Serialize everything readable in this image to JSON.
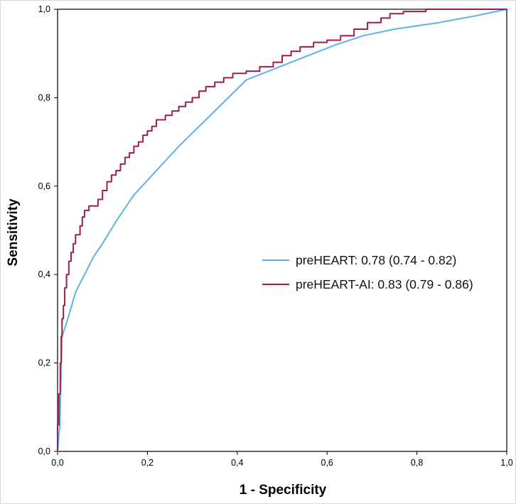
{
  "figure": {
    "background": "#ffffff",
    "frame_color": "#000000"
  },
  "chart_data": {
    "type": "line",
    "subtype": "roc-curve",
    "title": "",
    "xlabel": "1 - Specificity",
    "ylabel": "Sensitivity",
    "xlim": [
      0,
      1
    ],
    "ylim": [
      0,
      1
    ],
    "grid": false,
    "legend_position": "center-right",
    "x_ticks": [
      "0,0",
      "0,2",
      "0,4",
      "0,6",
      "0,8",
      "1,0"
    ],
    "y_ticks": [
      "0,0",
      "0,2",
      "0,4",
      "0,6",
      "0,8",
      "1,0"
    ],
    "series": [
      {
        "name": "preHEART: 0.78 (0.74 - 0.82)",
        "auc": 0.78,
        "ci_low": 0.74,
        "ci_high": 0.82,
        "color": "#5ab1f0",
        "line_style": "linear",
        "points": [
          [
            0,
            0
          ],
          [
            0.005,
            0.06
          ],
          [
            0.01,
            0.26
          ],
          [
            0.02,
            0.29
          ],
          [
            0.04,
            0.36
          ],
          [
            0.08,
            0.44
          ],
          [
            0.1,
            0.47
          ],
          [
            0.13,
            0.52
          ],
          [
            0.17,
            0.58
          ],
          [
            0.22,
            0.635
          ],
          [
            0.27,
            0.69
          ],
          [
            0.3,
            0.72
          ],
          [
            0.35,
            0.77
          ],
          [
            0.42,
            0.84
          ],
          [
            0.47,
            0.86
          ],
          [
            0.52,
            0.88
          ],
          [
            0.57,
            0.9
          ],
          [
            0.62,
            0.92
          ],
          [
            0.68,
            0.94
          ],
          [
            0.75,
            0.955
          ],
          [
            0.85,
            0.97
          ],
          [
            0.93,
            0.985
          ],
          [
            1,
            1
          ]
        ]
      },
      {
        "name": "preHEART-AI: 0.83 (0.79 - 0.86)",
        "auc": 0.83,
        "ci_low": 0.79,
        "ci_high": 0.86,
        "color": "#9e1c4e",
        "line_style": "step",
        "points": [
          [
            0,
            0
          ],
          [
            0.003,
            0.06
          ],
          [
            0.006,
            0.13
          ],
          [
            0.008,
            0.2
          ],
          [
            0.01,
            0.26
          ],
          [
            0.013,
            0.3
          ],
          [
            0.016,
            0.33
          ],
          [
            0.02,
            0.37
          ],
          [
            0.025,
            0.4
          ],
          [
            0.03,
            0.43
          ],
          [
            0.035,
            0.45
          ],
          [
            0.04,
            0.47
          ],
          [
            0.05,
            0.49
          ],
          [
            0.055,
            0.51
          ],
          [
            0.06,
            0.53
          ],
          [
            0.07,
            0.545
          ],
          [
            0.09,
            0.555
          ],
          [
            0.1,
            0.57
          ],
          [
            0.11,
            0.59
          ],
          [
            0.12,
            0.61
          ],
          [
            0.13,
            0.625
          ],
          [
            0.14,
            0.635
          ],
          [
            0.15,
            0.65
          ],
          [
            0.16,
            0.665
          ],
          [
            0.17,
            0.675
          ],
          [
            0.18,
            0.69
          ],
          [
            0.19,
            0.7
          ],
          [
            0.2,
            0.715
          ],
          [
            0.21,
            0.725
          ],
          [
            0.22,
            0.735
          ],
          [
            0.24,
            0.75
          ],
          [
            0.255,
            0.76
          ],
          [
            0.27,
            0.77
          ],
          [
            0.285,
            0.78
          ],
          [
            0.3,
            0.79
          ],
          [
            0.315,
            0.8
          ],
          [
            0.33,
            0.815
          ],
          [
            0.35,
            0.825
          ],
          [
            0.37,
            0.835
          ],
          [
            0.39,
            0.845
          ],
          [
            0.42,
            0.855
          ],
          [
            0.45,
            0.86
          ],
          [
            0.48,
            0.87
          ],
          [
            0.5,
            0.88
          ],
          [
            0.52,
            0.895
          ],
          [
            0.54,
            0.905
          ],
          [
            0.57,
            0.915
          ],
          [
            0.6,
            0.925
          ],
          [
            0.63,
            0.93
          ],
          [
            0.66,
            0.94
          ],
          [
            0.69,
            0.955
          ],
          [
            0.72,
            0.97
          ],
          [
            0.74,
            0.98
          ],
          [
            0.77,
            0.99
          ],
          [
            0.82,
            0.995
          ],
          [
            0.87,
            1.0
          ],
          [
            1,
            1
          ]
        ]
      }
    ]
  }
}
